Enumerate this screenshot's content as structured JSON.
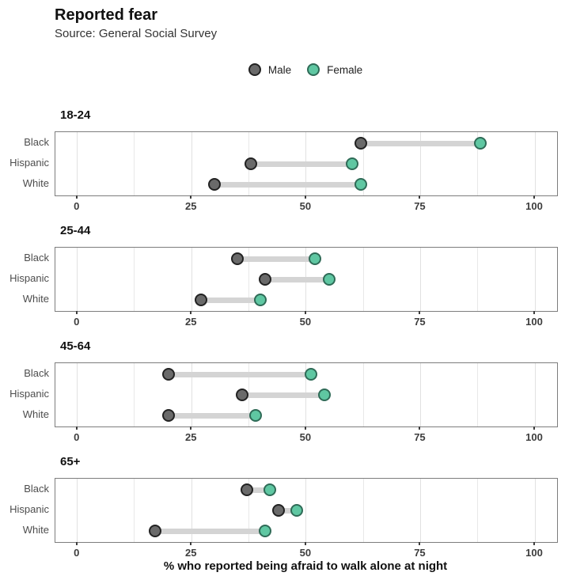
{
  "header": {
    "title": "Reported fear",
    "subtitle": "Source: General Social Survey"
  },
  "legend": [
    {
      "label": "Male",
      "fill": "#6a6a6a",
      "stroke": "#222222"
    },
    {
      "label": "Female",
      "fill": "#5fc7a2",
      "stroke": "#2f6b57"
    }
  ],
  "xlabel": "% who reported being afraid to walk alone at night",
  "chart_data": {
    "type": "dumbbell",
    "title": "Reported fear",
    "subtitle": "Source: General Social Survey",
    "xlabel": "% who reported being afraid to walk alone at night",
    "xlim": [
      0,
      100
    ],
    "x_ticks": [
      0,
      25,
      50,
      75,
      100
    ],
    "minor_grid_step": 12.5,
    "grid": true,
    "legend_position": "top",
    "categories": [
      "Black",
      "Hispanic",
      "White"
    ],
    "series_names": [
      "Male",
      "Female"
    ],
    "panels": [
      {
        "title": "18-24",
        "male": [
          62,
          38,
          30
        ],
        "female": [
          88,
          60,
          62
        ]
      },
      {
        "title": "25-44",
        "male": [
          35,
          41,
          27
        ],
        "female": [
          52,
          55,
          40
        ]
      },
      {
        "title": "45-64",
        "male": [
          20,
          36,
          20
        ],
        "female": [
          51,
          54,
          39
        ]
      },
      {
        "title": "65+",
        "male": [
          37,
          44,
          17
        ],
        "female": [
          42,
          48,
          41
        ]
      }
    ],
    "colors": {
      "male_fill": "#6a6a6a",
      "male_stroke": "#222222",
      "female_fill": "#5fc7a2",
      "female_stroke": "#2f6b57",
      "segment": "#d4d4d4",
      "grid_minor": "#e8e8e8",
      "grid_major": "#e1e1e1",
      "panel_border": "#7d7d7d",
      "tick": "#3d3d3d"
    }
  }
}
